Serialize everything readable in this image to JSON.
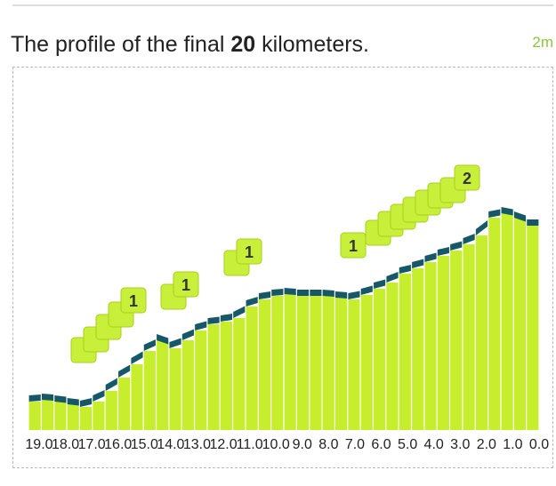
{
  "chart_data": {
    "type": "bar",
    "title_parts": [
      "The profile of the final ",
      "20",
      " kilometers."
    ],
    "time": "2m",
    "values": [
      32,
      34,
      32,
      29,
      26,
      32,
      44,
      59,
      74,
      89,
      101,
      92,
      101,
      112,
      119,
      122,
      126,
      139,
      147,
      151,
      153,
      151,
      151,
      151,
      149,
      147,
      152,
      159,
      166,
      176,
      182,
      189,
      196,
      202,
      209,
      219,
      239,
      244,
      239,
      230
    ],
    "color": "#c6ee2c",
    "cap_color": "#175868",
    "xticks": [
      {
        "value": 19,
        "label": "19.0"
      },
      {
        "value": 18,
        "label": "18.0"
      },
      {
        "value": 17,
        "label": "17.0"
      },
      {
        "value": 16,
        "label": "16.0"
      },
      {
        "value": 15,
        "label": "15.0"
      },
      {
        "value": 14,
        "label": "14.0"
      },
      {
        "value": 13,
        "label": "13.0"
      },
      {
        "value": 12,
        "label": "12.0"
      },
      {
        "value": 11,
        "label": "11.0"
      },
      {
        "value": 10,
        "label": "10.0"
      },
      {
        "value": 9,
        "label": "9.0"
      },
      {
        "value": 8,
        "label": "8.0"
      },
      {
        "value": 7,
        "label": "7.0"
      },
      {
        "value": 6,
        "label": "6.0"
      },
      {
        "value": 5,
        "label": "5.0"
      },
      {
        "value": 4,
        "label": "4.0"
      },
      {
        "value": 3,
        "label": "3.0"
      },
      {
        "value": 2,
        "label": "2.0"
      },
      {
        "value": 1,
        "label": "1.0"
      },
      {
        "value": 0,
        "label": "0.0"
      }
    ],
    "badges": [
      "1",
      "1",
      "1",
      "1",
      "2"
    ]
  }
}
